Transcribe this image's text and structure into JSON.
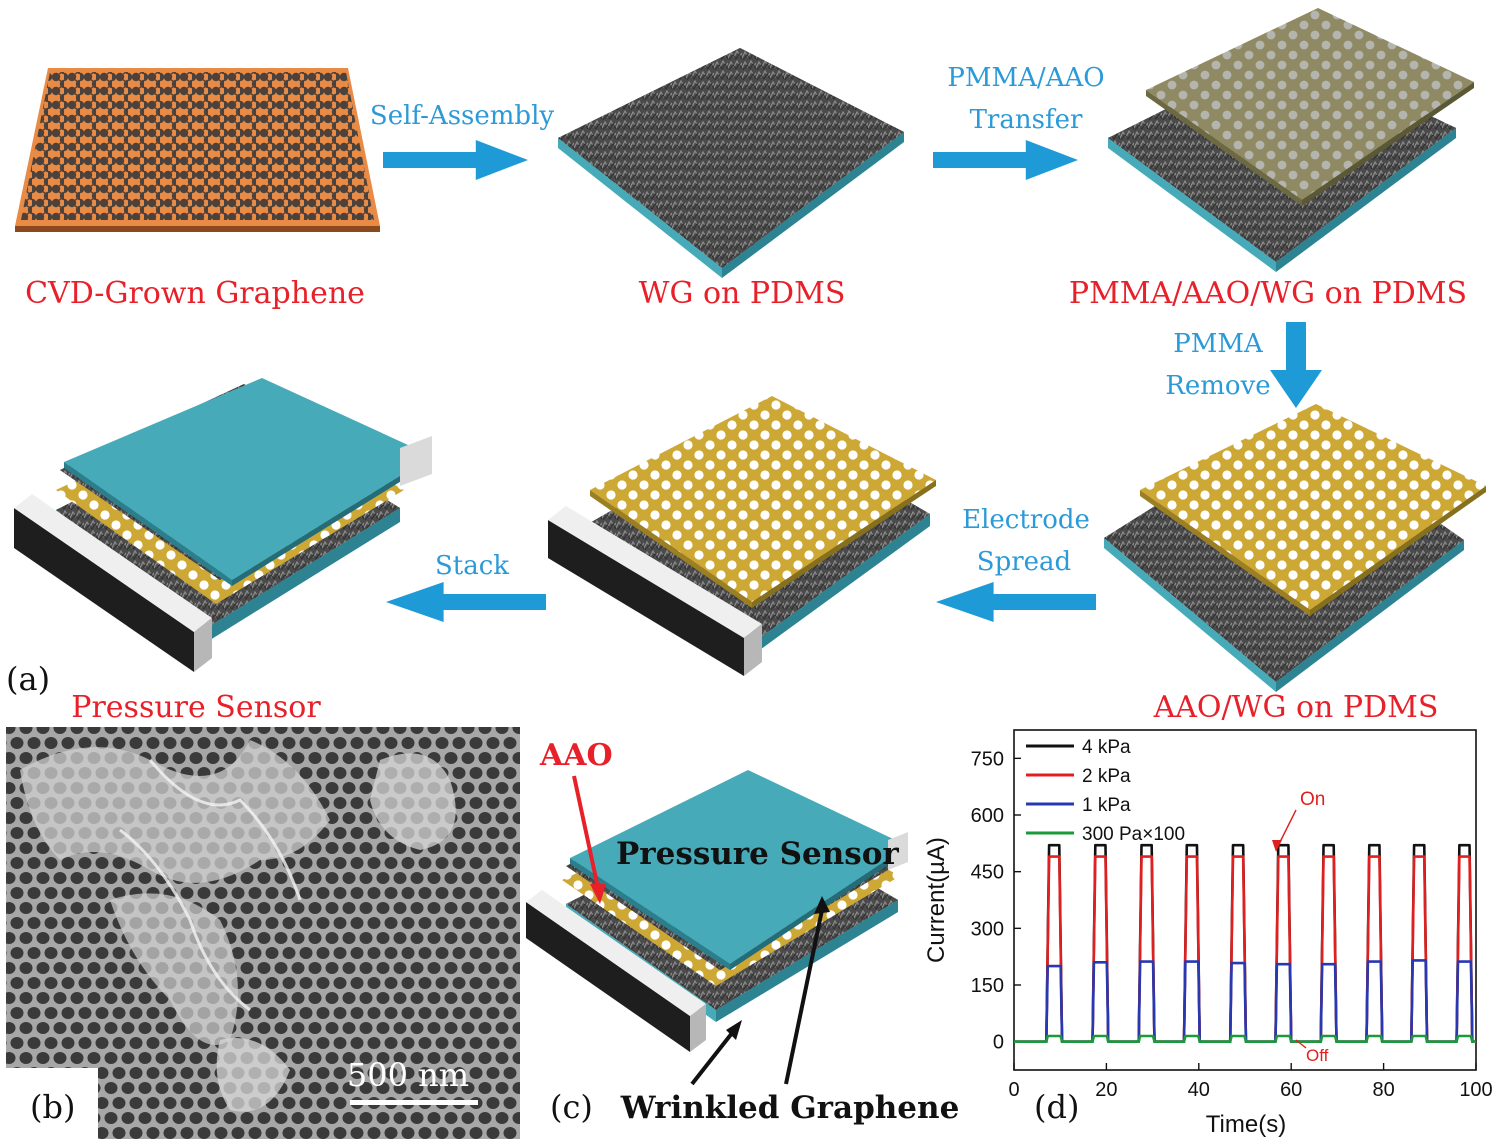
{
  "colors": {
    "label_red": "#e8202a",
    "process_blue": "#1e9ad6",
    "copper": "#e98a45",
    "pdms_teal": "#47aab8",
    "electrode_gold": "#cda835",
    "graphene_gray": "#555555",
    "pmma_olive": "#8f8a63"
  },
  "panel_a": {
    "letter": "(a)",
    "stages": {
      "cvd": "CVD-Grown Graphene",
      "wg_pdms": "WG on PDMS",
      "pmma_aao_wg": "PMMA/AAO/WG on PDMS",
      "aao_wg": "AAO/WG on PDMS",
      "sensor": "Pressure Sensor"
    },
    "steps": {
      "self_assembly": "Self-Assembly",
      "transfer_1": "PMMA/AAO",
      "transfer_2": "Transfer",
      "remove_1": "PMMA",
      "remove_2": "Remove",
      "electrode_1": "Electrode",
      "electrode_2": "Spread",
      "stack": "Stack"
    }
  },
  "panel_b": {
    "letter": "(b)",
    "scale_bar": "500 nm"
  },
  "panel_c": {
    "letter": "(c)",
    "aao": "AAO",
    "sensor": "Pressure Sensor",
    "graphene": "Wrinkled Graphene"
  },
  "panel_d": {
    "letter": "(d)"
  },
  "chart_data": {
    "type": "line",
    "xlabel": "Time(s)",
    "ylabel": "Current(µA)",
    "xlim": [
      0,
      100
    ],
    "ylim": [
      -75,
      825
    ],
    "xticks": [
      0,
      20,
      40,
      60,
      80,
      100
    ],
    "yticks": [
      0,
      150,
      300,
      450,
      600,
      750
    ],
    "legend_position": "top-left",
    "annotations": {
      "on": "On",
      "off": "Off"
    },
    "pulse_starts": [
      7,
      17,
      27,
      36.8,
      46.8,
      56.6,
      66.4,
      76.3,
      86,
      95.8
    ],
    "pulse_width": 3.4,
    "series": [
      {
        "name": "4 kPa",
        "color": "#111111",
        "values": [
          520,
          520,
          520,
          520,
          520,
          520,
          520,
          520,
          520,
          520
        ]
      },
      {
        "name": "2 kPa",
        "color": "#e02020",
        "values": [
          490,
          490,
          490,
          490,
          490,
          490,
          490,
          490,
          490,
          490
        ]
      },
      {
        "name": "1 kPa",
        "color": "#2838b0",
        "values": [
          200,
          210,
          212,
          212,
          208,
          205,
          205,
          212,
          215,
          212
        ]
      },
      {
        "name": "300 Pa×100",
        "color": "#1a9a3a",
        "values": [
          15,
          15,
          15,
          15,
          15,
          15,
          15,
          15,
          15,
          15
        ]
      }
    ]
  }
}
